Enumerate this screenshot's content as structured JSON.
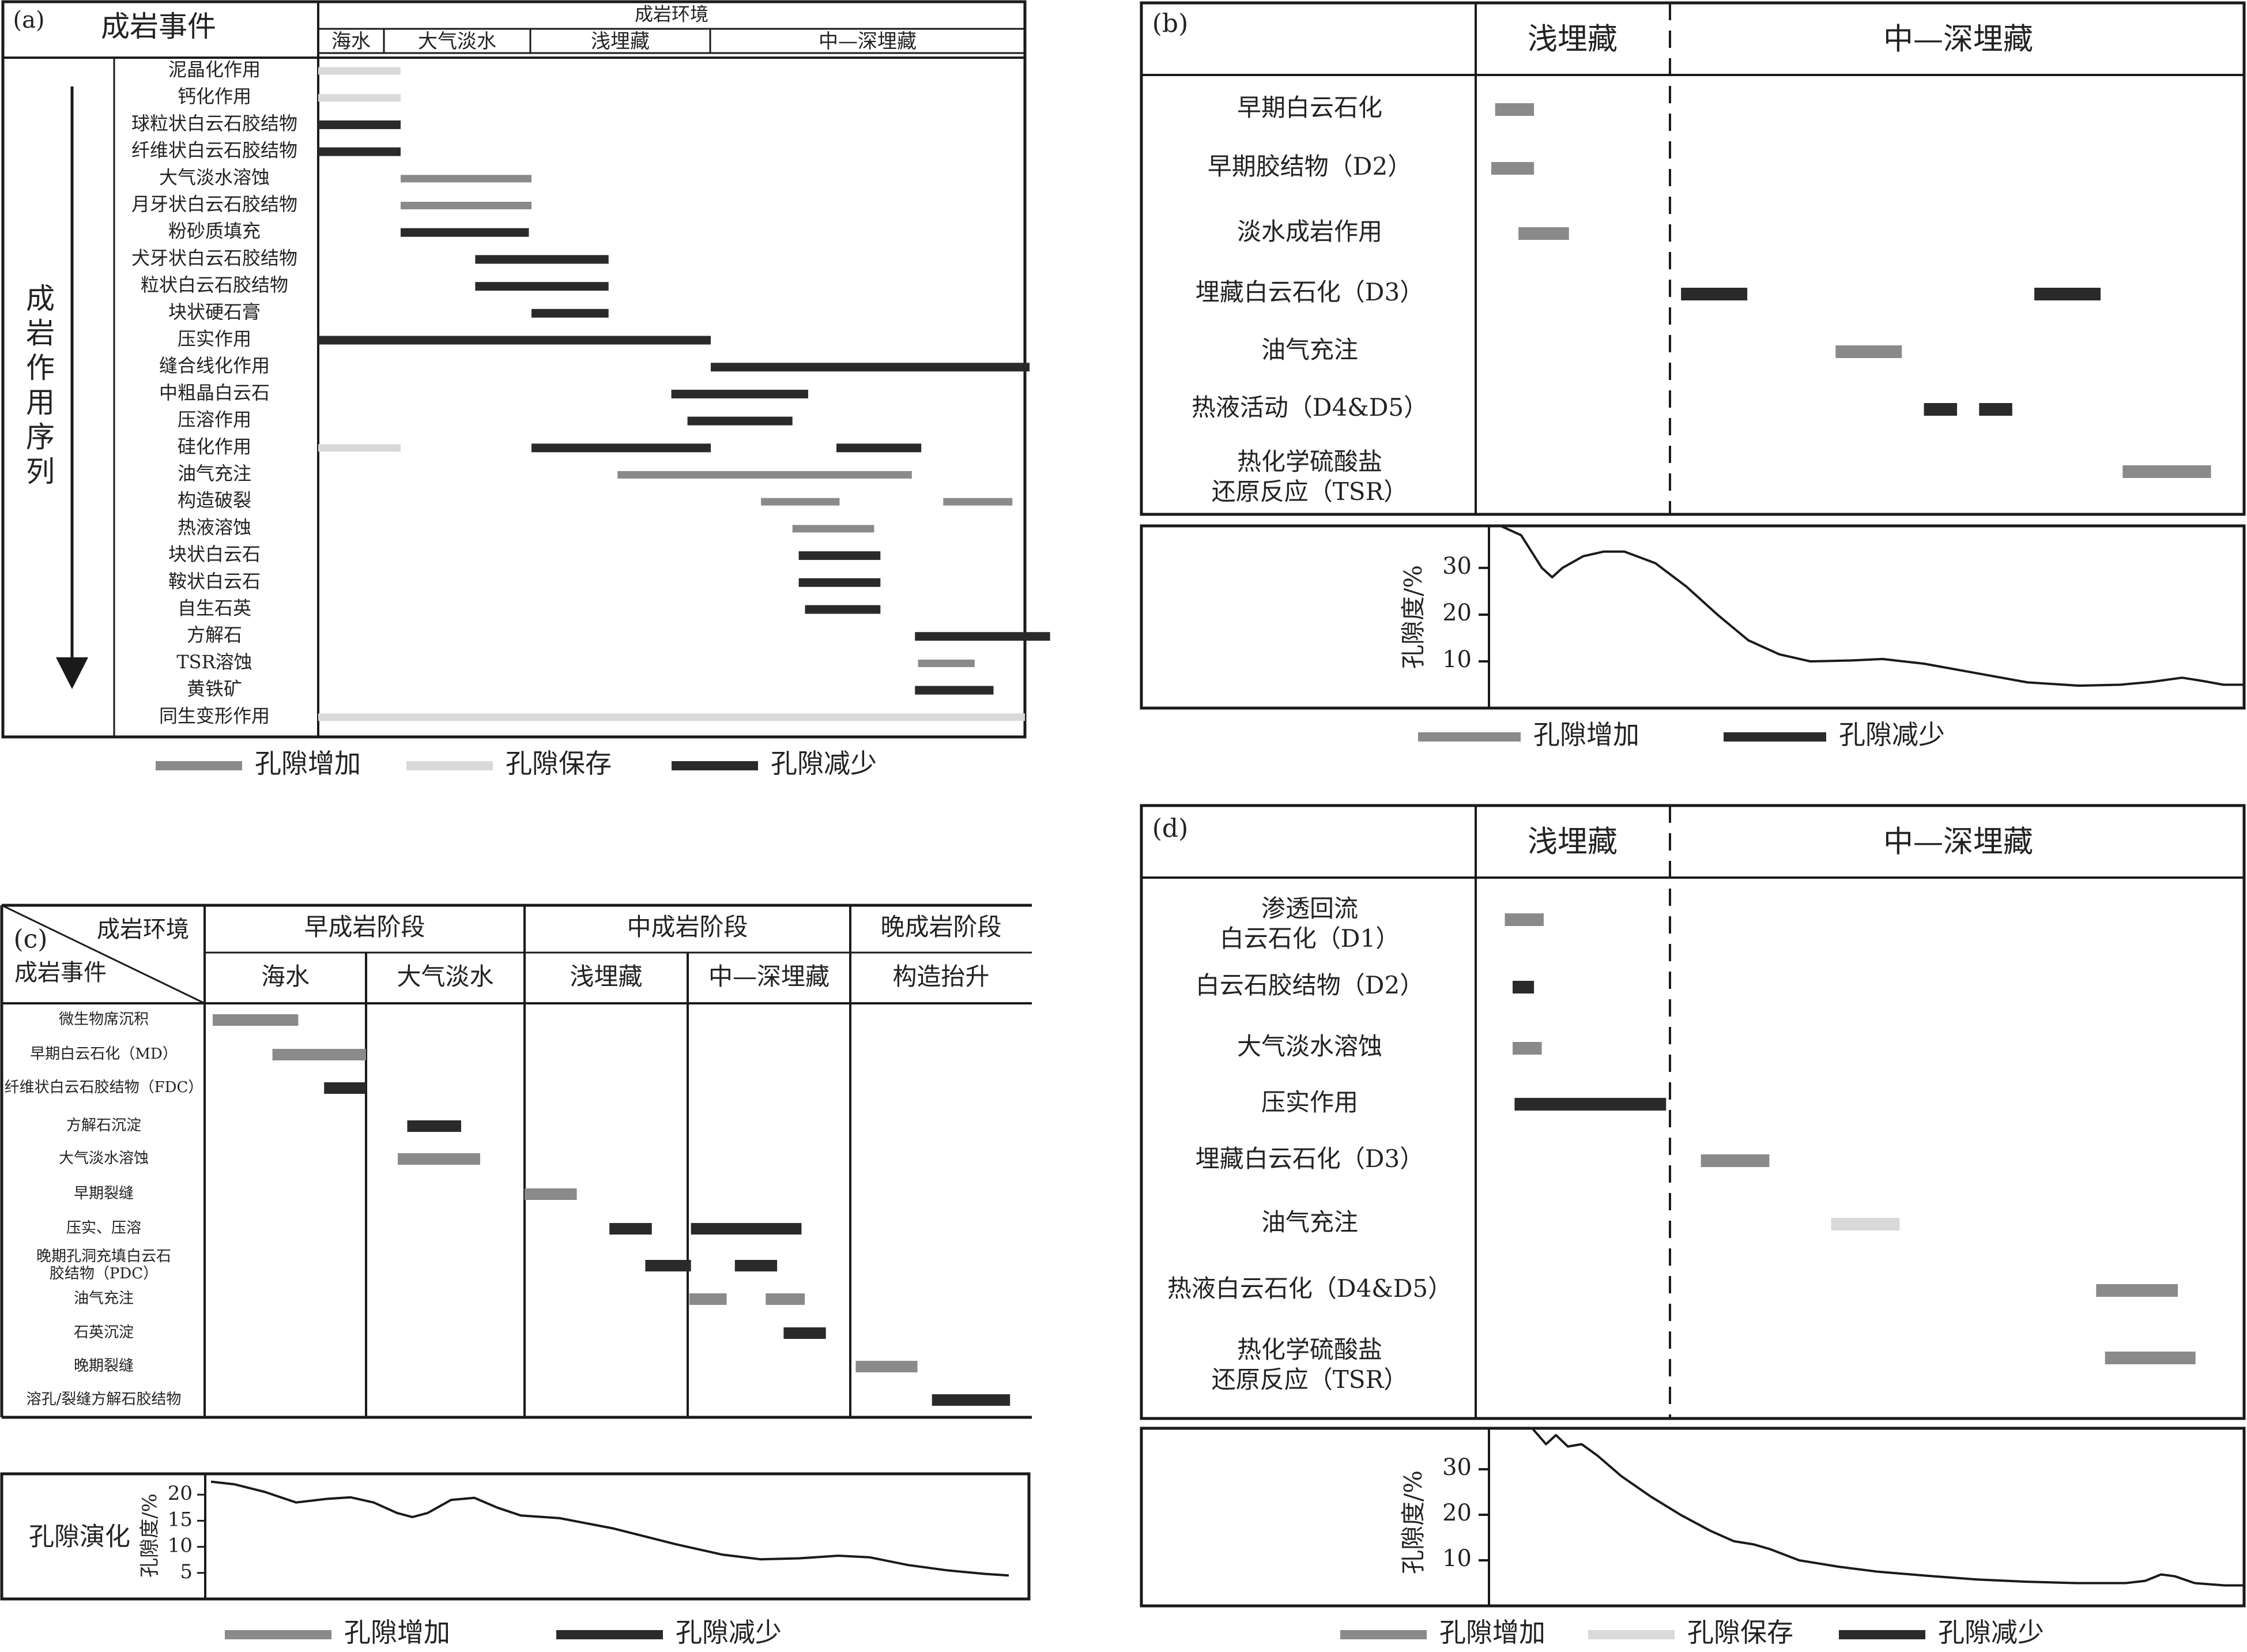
{
  "colors": {
    "increase": "#8a8a8a",
    "preserve": "#d9d9d9",
    "decrease": "#2a2a2a",
    "line": "#1a1a1a"
  },
  "legend": {
    "increase": "孔隙增加",
    "preserve": "孔隙保存",
    "decrease": "孔隙减少"
  },
  "panel_a": {
    "label": "(a)",
    "event_header": "成岩事件",
    "env_header": "成岩环境",
    "envs": [
      "海水",
      "大气淡水",
      "浅埋藏",
      "中—深埋藏"
    ],
    "arrow_label": "成岩作用序列",
    "events": [
      {
        "name": "泥晶化作用",
        "bars": [
          {
            "s": 0.0,
            "e": 1.0,
            "t": "preserve"
          }
        ]
      },
      {
        "name": "钙化作用",
        "bars": [
          {
            "s": 0.0,
            "e": 1.0,
            "t": "preserve"
          }
        ]
      },
      {
        "name": "球粒状白云石胶结物",
        "bars": [
          {
            "s": 0.0,
            "e": 1.0,
            "t": "decrease"
          }
        ]
      },
      {
        "name": "纤维状白云石胶结物",
        "bars": [
          {
            "s": 0.0,
            "e": 1.0,
            "t": "decrease"
          }
        ]
      },
      {
        "name": "大气淡水溶蚀",
        "bars": [
          {
            "s": 1.0,
            "e": 2.0,
            "t": "increase"
          }
        ]
      },
      {
        "name": "月牙状白云石胶结物",
        "bars": [
          {
            "s": 1.0,
            "e": 2.0,
            "t": "increase"
          }
        ]
      },
      {
        "name": "粉砂质填充",
        "bars": [
          {
            "s": 1.0,
            "e": 1.98,
            "t": "decrease"
          }
        ]
      },
      {
        "name": "犬牙状白云石胶结物",
        "bars": [
          {
            "s": 1.57,
            "e": 2.43,
            "t": "decrease"
          }
        ]
      },
      {
        "name": "粒状白云石胶结物",
        "bars": [
          {
            "s": 1.57,
            "e": 2.43,
            "t": "decrease"
          }
        ]
      },
      {
        "name": "块状硬石膏",
        "bars": [
          {
            "s": 2.0,
            "e": 2.43,
            "t": "decrease"
          }
        ]
      },
      {
        "name": "压实作用",
        "bars": [
          {
            "s": 0.0,
            "e": 3.0,
            "t": "decrease"
          }
        ]
      },
      {
        "name": "缝合线化作用",
        "bars": [
          {
            "s": 3.0,
            "e": 4.0,
            "t": "decrease"
          }
        ]
      },
      {
        "name": "中粗晶白云石",
        "bars": [
          {
            "s": 2.78,
            "e": 3.31,
            "t": "decrease"
          }
        ]
      },
      {
        "name": "压溶作用",
        "bars": [
          {
            "s": 2.87,
            "e": 3.26,
            "t": "decrease"
          }
        ]
      },
      {
        "name": "硅化作用",
        "bars": [
          {
            "s": 0.0,
            "e": 1.0,
            "t": "preserve"
          },
          {
            "s": 2.0,
            "e": 3.0,
            "t": "decrease"
          },
          {
            "s": 3.4,
            "e": 3.67,
            "t": "decrease"
          }
        ]
      },
      {
        "name": "油气充注",
        "bars": [
          {
            "s": 2.48,
            "e": 3.64,
            "t": "increase"
          }
        ]
      },
      {
        "name": "构造破裂",
        "bars": [
          {
            "s": 3.16,
            "e": 3.41,
            "t": "increase"
          },
          {
            "s": 3.74,
            "e": 3.96,
            "t": "increase"
          }
        ]
      },
      {
        "name": "热液溶蚀",
        "bars": [
          {
            "s": 3.26,
            "e": 3.52,
            "t": "increase"
          }
        ]
      },
      {
        "name": "块状白云石",
        "bars": [
          {
            "s": 3.28,
            "e": 3.54,
            "t": "decrease"
          }
        ]
      },
      {
        "name": "鞍状白云石",
        "bars": [
          {
            "s": 3.28,
            "e": 3.54,
            "t": "decrease"
          }
        ]
      },
      {
        "name": "自生石英",
        "bars": [
          {
            "s": 3.3,
            "e": 3.54,
            "t": "decrease"
          }
        ]
      },
      {
        "name": "方解石",
        "bars": [
          {
            "s": 3.65,
            "e": 4.08,
            "t": "decrease"
          }
        ]
      },
      {
        "name": "TSR溶蚀",
        "bars": [
          {
            "s": 3.66,
            "e": 3.84,
            "t": "increase"
          }
        ]
      },
      {
        "name": "黄铁矿",
        "bars": [
          {
            "s": 3.65,
            "e": 3.9,
            "t": "decrease"
          }
        ]
      },
      {
        "name": "同生变形作用",
        "bars": [
          {
            "s": 0.0,
            "e": 4.0,
            "t": "preserve"
          }
        ]
      }
    ]
  },
  "panel_b": {
    "label": "(b)",
    "col1": "浅埋藏",
    "col2": "中—深埋藏",
    "events": [
      {
        "name": "早期白云石化",
        "bars": [
          {
            "s": 0.1,
            "e": 0.3,
            "t": "increase"
          }
        ]
      },
      {
        "name": "早期胶结物（D2）",
        "bars": [
          {
            "s": 0.08,
            "e": 0.3,
            "t": "increase"
          }
        ]
      },
      {
        "name": "淡水成岩作用",
        "bars": [
          {
            "s": 0.22,
            "e": 0.48,
            "t": "increase"
          }
        ]
      },
      {
        "name": "埋藏白云石化（D3）",
        "bars": [
          {
            "s": 1.05,
            "e": 1.35,
            "t": "decrease"
          },
          {
            "s": 2.65,
            "e": 2.95,
            "t": "decrease"
          }
        ]
      },
      {
        "name": "油气充注",
        "bars": [
          {
            "s": 1.75,
            "e": 2.05,
            "t": "increase"
          }
        ]
      },
      {
        "name": "热液活动（D4&D5）",
        "bars": [
          {
            "s": 2.15,
            "e": 2.3,
            "t": "decrease"
          },
          {
            "s": 2.4,
            "e": 2.55,
            "t": "decrease"
          }
        ]
      },
      {
        "name": "热化学硫酸盐\n还原反应（TSR）",
        "bars": [
          {
            "s": 3.05,
            "e": 3.45,
            "t": "increase"
          }
        ]
      }
    ],
    "porosity_label": "孔隙度/%",
    "porosity_ticks": [
      10,
      20,
      30
    ],
    "porosity_range": [
      0,
      39
    ],
    "porosity_curve": [
      [
        0.0,
        39
      ],
      [
        0.1,
        37
      ],
      [
        0.2,
        30
      ],
      [
        0.25,
        28
      ],
      [
        0.3,
        30
      ],
      [
        0.4,
        32.5
      ],
      [
        0.5,
        33.5
      ],
      [
        0.6,
        33.5
      ],
      [
        0.75,
        31
      ],
      [
        0.9,
        26
      ],
      [
        1.05,
        20
      ],
      [
        1.2,
        14.5
      ],
      [
        1.35,
        11.5
      ],
      [
        1.5,
        10
      ],
      [
        1.7,
        10.2
      ],
      [
        1.85,
        10.5
      ],
      [
        2.05,
        9.5
      ],
      [
        2.3,
        7.5
      ],
      [
        2.55,
        5.5
      ],
      [
        2.8,
        4.8
      ],
      [
        3.0,
        5
      ],
      [
        3.15,
        5.6
      ],
      [
        3.3,
        6.5
      ],
      [
        3.4,
        5.8
      ],
      [
        3.5,
        5
      ],
      [
        3.6,
        5
      ]
    ]
  },
  "panel_c": {
    "label": "(c)",
    "corner_top": "成岩环境",
    "corner_bottom": "成岩事件",
    "stages": [
      "早成岩阶段",
      "中成岩阶段",
      "晚成岩阶段"
    ],
    "envs": [
      "海水",
      "大气淡水",
      "浅埋藏",
      "中—深埋藏",
      "构造抬升"
    ],
    "events": [
      {
        "name": "微生物席沉积",
        "bars": [
          {
            "s": 0.05,
            "e": 0.58,
            "t": "increase"
          }
        ]
      },
      {
        "name": "早期白云石化（MD）",
        "bars": [
          {
            "s": 0.42,
            "e": 1.0,
            "t": "increase"
          }
        ]
      },
      {
        "name": "纤维状白云石胶结物（FDC）",
        "bars": [
          {
            "s": 0.74,
            "e": 1.0,
            "t": "decrease"
          }
        ]
      },
      {
        "name": "方解石沉淀",
        "bars": [
          {
            "s": 1.26,
            "e": 1.6,
            "t": "decrease"
          }
        ]
      },
      {
        "name": "大气淡水溶蚀",
        "bars": [
          {
            "s": 1.2,
            "e": 1.72,
            "t": "increase"
          }
        ]
      },
      {
        "name": "早期裂缝",
        "bars": [
          {
            "s": 2.0,
            "e": 2.32,
            "t": "increase"
          }
        ]
      },
      {
        "name": "压实、压溶",
        "bars": [
          {
            "s": 2.52,
            "e": 2.78,
            "t": "decrease"
          },
          {
            "s": 3.02,
            "e": 3.7,
            "t": "decrease"
          }
        ]
      },
      {
        "name": "晚期孔洞充填白云石\n胶结物（PDC）",
        "bars": [
          {
            "s": 2.74,
            "e": 3.02,
            "t": "decrease"
          },
          {
            "s": 3.29,
            "e": 3.55,
            "t": "decrease"
          }
        ]
      },
      {
        "name": "油气充注",
        "bars": [
          {
            "s": 3.01,
            "e": 3.24,
            "t": "increase"
          },
          {
            "s": 3.48,
            "e": 3.72,
            "t": "increase"
          }
        ]
      },
      {
        "name": "石英沉淀",
        "bars": [
          {
            "s": 3.59,
            "e": 3.85,
            "t": "decrease"
          }
        ]
      },
      {
        "name": "晚期裂缝",
        "bars": [
          {
            "s": 4.03,
            "e": 4.37,
            "t": "increase"
          }
        ]
      },
      {
        "name": "溶孔/裂缝方解石胶结物",
        "bars": [
          {
            "s": 4.45,
            "e": 4.88,
            "t": "decrease"
          }
        ]
      }
    ],
    "porosity_title": "孔隙演化",
    "porosity_label": "孔隙度/%",
    "porosity_ticks": [
      5,
      10,
      15,
      20
    ],
    "porosity_range": [
      0,
      24
    ],
    "porosity_curve": [
      [
        0.0,
        22.5
      ],
      [
        0.15,
        22
      ],
      [
        0.35,
        20.5
      ],
      [
        0.55,
        18.5
      ],
      [
        0.75,
        19.2
      ],
      [
        0.9,
        19.5
      ],
      [
        1.05,
        18.5
      ],
      [
        1.2,
        16.5
      ],
      [
        1.3,
        15.7
      ],
      [
        1.4,
        16.5
      ],
      [
        1.55,
        19
      ],
      [
        1.7,
        19.4
      ],
      [
        1.85,
        17.5
      ],
      [
        2.0,
        16
      ],
      [
        2.25,
        15.5
      ],
      [
        2.6,
        13.5
      ],
      [
        3.0,
        10.5
      ],
      [
        3.3,
        8.5
      ],
      [
        3.55,
        7.6
      ],
      [
        3.8,
        7.8
      ],
      [
        4.05,
        8.3
      ],
      [
        4.25,
        8
      ],
      [
        4.5,
        6.5
      ],
      [
        4.75,
        5.5
      ],
      [
        5.0,
        4.8
      ],
      [
        5.15,
        4.5
      ]
    ]
  },
  "panel_d": {
    "label": "(d)",
    "col1": "浅埋藏",
    "col2": "中—深埋藏",
    "events": [
      {
        "name": "渗透回流\n白云石化（D1）",
        "bars": [
          {
            "s": 0.15,
            "e": 0.35,
            "t": "increase"
          }
        ]
      },
      {
        "name": "白云石胶结物（D2）",
        "bars": [
          {
            "s": 0.19,
            "e": 0.3,
            "t": "decrease"
          }
        ]
      },
      {
        "name": "大气淡水溶蚀",
        "bars": [
          {
            "s": 0.19,
            "e": 0.34,
            "t": "increase"
          }
        ]
      },
      {
        "name": "压实作用",
        "bars": [
          {
            "s": 0.2,
            "e": 0.98,
            "t": "decrease"
          }
        ]
      },
      {
        "name": "埋藏白云石化（D3）",
        "bars": [
          {
            "s": 1.14,
            "e": 1.45,
            "t": "increase"
          }
        ]
      },
      {
        "name": "油气充注",
        "bars": [
          {
            "s": 1.73,
            "e": 2.04,
            "t": "preserve"
          }
        ]
      },
      {
        "name": "热液白云石化（D4&D5）",
        "bars": [
          {
            "s": 2.93,
            "e": 3.3,
            "t": "increase"
          }
        ]
      },
      {
        "name": "热化学硫酸盐\n还原反应（TSR）",
        "bars": [
          {
            "s": 2.97,
            "e": 3.38,
            "t": "increase"
          }
        ]
      }
    ],
    "porosity_label": "孔隙度/%",
    "porosity_ticks": [
      10,
      20,
      30
    ],
    "porosity_range": [
      0,
      39
    ],
    "porosity_curve": [
      [
        0.0,
        39
      ],
      [
        0.07,
        35.5
      ],
      [
        0.12,
        37.5
      ],
      [
        0.18,
        35
      ],
      [
        0.25,
        35.5
      ],
      [
        0.33,
        33
      ],
      [
        0.45,
        28.5
      ],
      [
        0.6,
        24
      ],
      [
        0.75,
        20
      ],
      [
        0.9,
        16.5
      ],
      [
        1.02,
        14.2
      ],
      [
        1.12,
        13.5
      ],
      [
        1.2,
        12.5
      ],
      [
        1.35,
        10
      ],
      [
        1.55,
        8.6
      ],
      [
        1.75,
        7.5
      ],
      [
        2.0,
        6.6
      ],
      [
        2.25,
        5.8
      ],
      [
        2.5,
        5.3
      ],
      [
        2.75,
        5
      ],
      [
        3.0,
        5
      ],
      [
        3.1,
        5.5
      ],
      [
        3.18,
        6.9
      ],
      [
        3.25,
        6.5
      ],
      [
        3.35,
        5
      ],
      [
        3.5,
        4.5
      ],
      [
        3.6,
        4.5
      ]
    ]
  }
}
